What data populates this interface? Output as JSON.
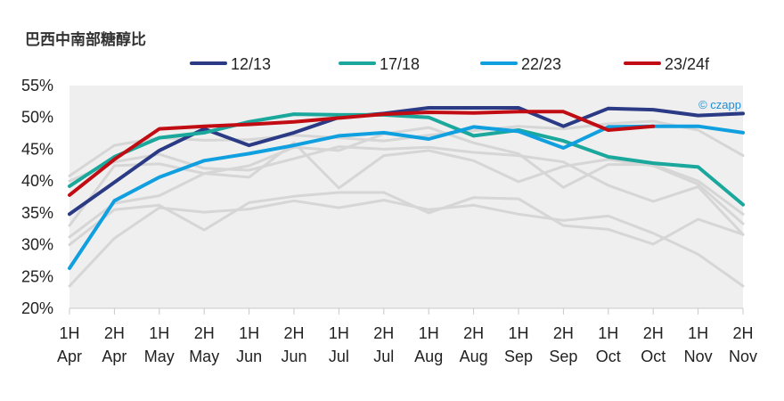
{
  "chart_data": {
    "type": "line",
    "title": "巴西中南部糖醇比",
    "watermark": "© czapp",
    "ylim": [
      20,
      55
    ],
    "y_ticks": [
      "20%",
      "25%",
      "30%",
      "35%",
      "40%",
      "45%",
      "50%",
      "55%"
    ],
    "y_tick_values": [
      20,
      25,
      30,
      35,
      40,
      45,
      50,
      55
    ],
    "x_half": [
      "1H",
      "2H",
      "1H",
      "2H",
      "1H",
      "2H",
      "1H",
      "2H",
      "1H",
      "2H",
      "1H",
      "2H",
      "1H",
      "2H",
      "1H",
      "2H"
    ],
    "x_month": [
      "Apr",
      "Apr",
      "May",
      "May",
      "Jun",
      "Jun",
      "Jul",
      "Jul",
      "Aug",
      "Aug",
      "Sep",
      "Sep",
      "Oct",
      "Oct",
      "Nov",
      "Nov"
    ],
    "grid": false,
    "legend_position": "top",
    "background_color": "#efefef",
    "background_series_color": "#d6d6d6",
    "series": [
      {
        "name": "12/13",
        "color": "#2b3a84",
        "values": [
          34.8,
          39.8,
          44.8,
          48.2,
          45.6,
          47.6,
          50.0,
          50.6,
          51.5,
          51.5,
          51.5,
          48.6,
          51.4,
          51.2,
          50.3,
          50.6
        ]
      },
      {
        "name": "17/18",
        "color": "#1aa79c",
        "values": [
          39.2,
          43.8,
          46.8,
          47.6,
          49.3,
          50.5,
          50.4,
          50.4,
          50.0,
          47.1,
          48.0,
          46.3,
          43.8,
          42.8,
          42.2,
          36.3
        ]
      },
      {
        "name": "22/23",
        "color": "#109fdf",
        "values": [
          26.3,
          36.9,
          40.6,
          43.2,
          44.3,
          45.6,
          47.1,
          47.6,
          46.6,
          48.5,
          47.8,
          45.2,
          48.5,
          48.6,
          48.6,
          47.6
        ]
      },
      {
        "name": "23/24f",
        "color": "#c00c12",
        "values": [
          37.8,
          43.4,
          48.2,
          48.6,
          48.9,
          49.3,
          49.9,
          50.5,
          50.8,
          50.7,
          50.9,
          50.9,
          48.0,
          48.6,
          null,
          null
        ]
      }
    ],
    "background_series": [
      {
        "values": [
          40.8,
          45.6,
          46.8,
          46.4,
          46.5,
          47.2,
          46.8,
          46.3,
          47.2,
          47.9,
          48.6,
          48.2,
          49.0,
          49.4,
          48.0,
          44.0
        ]
      },
      {
        "values": [
          40.0,
          43.0,
          44.2,
          42.0,
          41.7,
          43.5,
          45.4,
          45.0,
          45.3,
          44.5,
          44.0,
          43.0,
          39.3,
          36.8,
          39.1,
          31.6
        ]
      },
      {
        "values": [
          33.0,
          42.4,
          42.7,
          41.2,
          40.6,
          46.0,
          38.9,
          44.0,
          44.8,
          43.2,
          39.9,
          42.3,
          43.4,
          42.4,
          39.5,
          33.3
        ]
      },
      {
        "values": [
          31.2,
          36.5,
          37.7,
          41.2,
          42.4,
          45.3,
          44.8,
          47.4,
          48.4,
          46.0,
          44.3,
          39.0,
          42.6,
          42.6,
          40.0,
          34.8
        ]
      },
      {
        "values": [
          30.0,
          35.5,
          36.2,
          32.3,
          36.6,
          37.6,
          38.2,
          38.2,
          35.0,
          37.4,
          37.2,
          33.0,
          32.4,
          30.1,
          34.0,
          31.6
        ]
      },
      {
        "values": [
          23.5,
          31.0,
          35.8,
          35.1,
          35.6,
          36.9,
          35.8,
          37.0,
          35.5,
          36.2,
          34.8,
          33.8,
          34.5,
          31.8,
          28.5,
          23.5
        ]
      }
    ]
  }
}
